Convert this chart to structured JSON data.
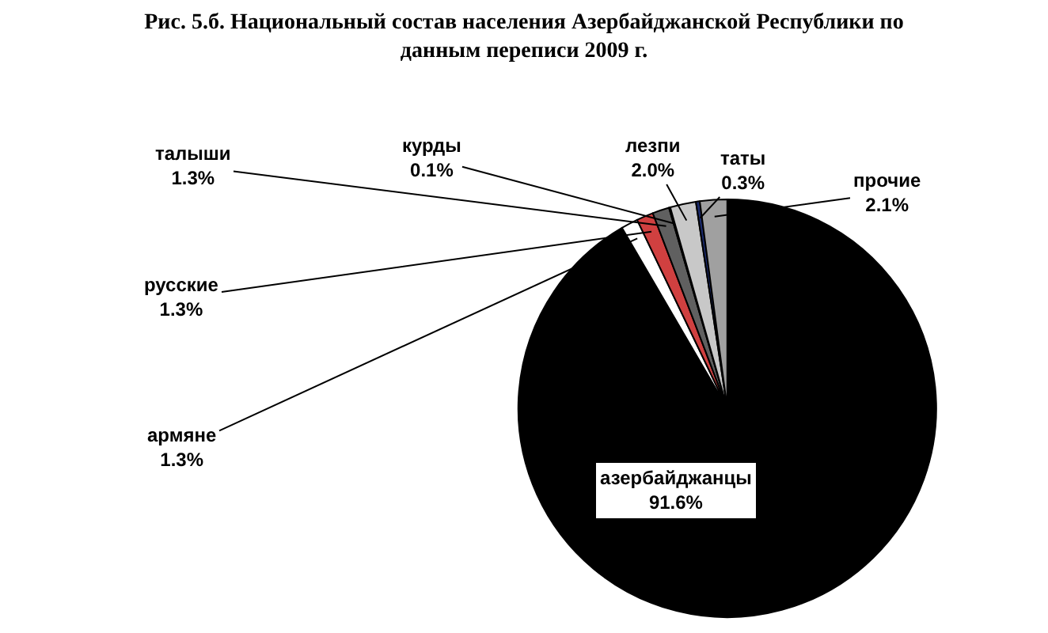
{
  "chart_data": {
    "type": "pie",
    "title": "Рис. 5.б. Национальный состав населения Азербайджанской Республики по данным переписи 2009 г.",
    "categories": [
      "азербайджанцы",
      "армяне",
      "русские",
      "талыши",
      "курды",
      "лезпи",
      "таты",
      "прочие"
    ],
    "values": [
      91.6,
      1.3,
      1.3,
      1.3,
      0.1,
      2.0,
      0.3,
      2.1
    ],
    "value_labels": [
      "91.6%",
      "1.3%",
      "1.3%",
      "1.3%",
      "0.1%",
      "2.0%",
      "0.3%",
      "2.1%"
    ],
    "colors": [
      "#000000",
      "#ffffff",
      "#d04040",
      "#606060",
      "#303030",
      "#c8c8c8",
      "#1a2a6c",
      "#a0a0a0"
    ],
    "legend": false
  }
}
